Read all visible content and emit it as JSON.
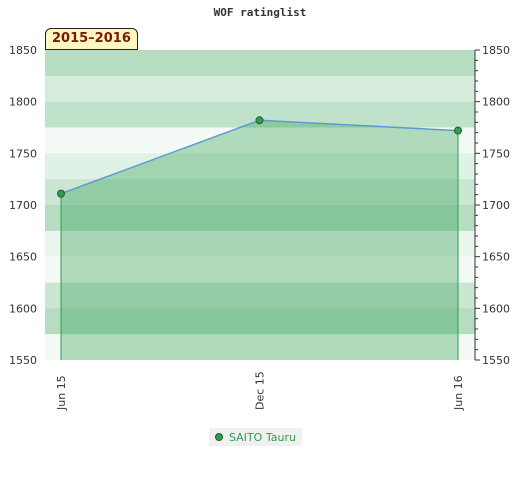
{
  "chart_data": {
    "type": "area",
    "title": "WOF ratinglist",
    "season": "2015–2016",
    "categories": [
      "Jun 15",
      "Dec 15",
      "Jun 16"
    ],
    "series": [
      {
        "name": "SAITO Tauru",
        "values": [
          1711,
          1782,
          1772
        ]
      }
    ],
    "ylim": [
      1550,
      1850
    ],
    "yticks": [
      1550,
      1600,
      1650,
      1700,
      1750,
      1800,
      1850
    ],
    "grid": true,
    "legend": "bottom-center",
    "colors": {
      "line": "#5b9bd5",
      "fill": "#2f9e4f",
      "marker": "#2f9e4f",
      "band": "#2f9e4f"
    }
  }
}
